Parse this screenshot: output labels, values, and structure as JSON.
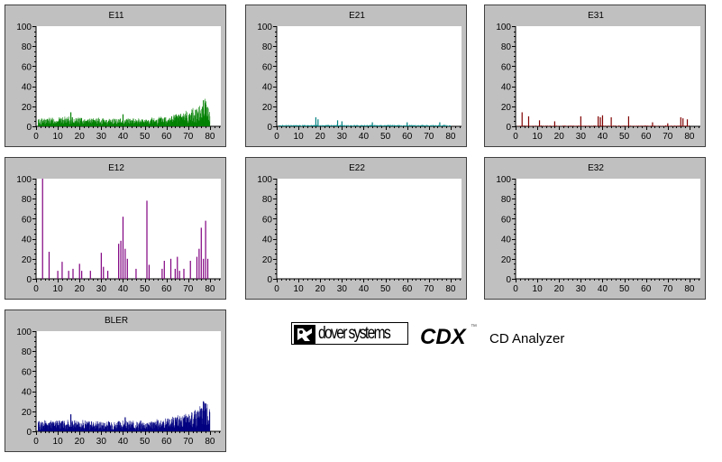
{
  "brand": {
    "company": "dover systems",
    "product": "CDX",
    "tm": "™",
    "description": "CD Analyzer",
    "logo_icon": "dover-logo-icon"
  },
  "chart_data": [
    {
      "id": "e11",
      "type": "bar",
      "title": "E11",
      "color": "#008000",
      "xlim": [
        0,
        85
      ],
      "ylim": [
        0,
        100
      ],
      "xticks": [
        0,
        10,
        20,
        30,
        40,
        50,
        60,
        70,
        80
      ],
      "yticks": [
        0,
        20,
        40,
        60,
        80,
        100
      ],
      "profile": [
        [
          0,
          6
        ],
        [
          10,
          7
        ],
        [
          20,
          7
        ],
        [
          30,
          6
        ],
        [
          40,
          6
        ],
        [
          50,
          6
        ],
        [
          60,
          8
        ],
        [
          70,
          12
        ],
        [
          76,
          18
        ],
        [
          78,
          22
        ],
        [
          80,
          15
        ]
      ],
      "noise": 6,
      "spikes": [
        [
          77,
          26
        ],
        [
          78,
          25
        ],
        [
          16,
          14
        ],
        [
          40,
          12
        ]
      ]
    },
    {
      "id": "e21",
      "type": "bar",
      "title": "E21",
      "color": "#008080",
      "xlim": [
        0,
        85
      ],
      "ylim": [
        0,
        100
      ],
      "xticks": [
        0,
        10,
        20,
        30,
        40,
        50,
        60,
        70,
        80
      ],
      "yticks": [
        0,
        20,
        40,
        60,
        80,
        100
      ],
      "profile": [
        [
          0,
          1
        ],
        [
          40,
          1
        ],
        [
          80,
          1
        ]
      ],
      "noise": 2,
      "spikes": [
        [
          18,
          9
        ],
        [
          19,
          7
        ],
        [
          28,
          6
        ],
        [
          30,
          5
        ],
        [
          44,
          4
        ],
        [
          60,
          4
        ],
        [
          75,
          4
        ]
      ]
    },
    {
      "id": "e31",
      "type": "bar",
      "title": "E31",
      "color": "#800000",
      "xlim": [
        0,
        85
      ],
      "ylim": [
        0,
        100
      ],
      "xticks": [
        0,
        10,
        20,
        30,
        40,
        50,
        60,
        70,
        80
      ],
      "yticks": [
        0,
        20,
        40,
        60,
        80,
        100
      ],
      "profile": [
        [
          0,
          0.5
        ],
        [
          80,
          0.5
        ]
      ],
      "noise": 1.5,
      "spikes": [
        [
          3,
          14
        ],
        [
          6,
          10
        ],
        [
          11,
          6
        ],
        [
          18,
          5
        ],
        [
          30,
          10
        ],
        [
          38,
          10
        ],
        [
          39,
          9
        ],
        [
          40,
          11
        ],
        [
          44,
          9
        ],
        [
          52,
          10
        ],
        [
          76,
          9
        ],
        [
          77,
          8
        ],
        [
          79,
          7
        ],
        [
          63,
          4
        ],
        [
          70,
          3
        ]
      ]
    },
    {
      "id": "e12",
      "type": "bar",
      "title": "E12",
      "color": "#800080",
      "xlim": [
        0,
        85
      ],
      "ylim": [
        0,
        100
      ],
      "xticks": [
        0,
        10,
        20,
        30,
        40,
        50,
        60,
        70,
        80
      ],
      "yticks": [
        0,
        20,
        40,
        60,
        80,
        100
      ],
      "profile": [
        [
          0,
          0
        ],
        [
          80,
          0
        ]
      ],
      "noise": 0,
      "spikes": [
        [
          3,
          100
        ],
        [
          6,
          27
        ],
        [
          10,
          8
        ],
        [
          12,
          17
        ],
        [
          15,
          8
        ],
        [
          17,
          10
        ],
        [
          20,
          15
        ],
        [
          21,
          8
        ],
        [
          25,
          8
        ],
        [
          30,
          26
        ],
        [
          31,
          12
        ],
        [
          33,
          8
        ],
        [
          38,
          35
        ],
        [
          39,
          38
        ],
        [
          40,
          62
        ],
        [
          41,
          30
        ],
        [
          42,
          20
        ],
        [
          46,
          10
        ],
        [
          51,
          78
        ],
        [
          52,
          14
        ],
        [
          58,
          10
        ],
        [
          62,
          20
        ],
        [
          64,
          10
        ],
        [
          65,
          22
        ],
        [
          66,
          8
        ],
        [
          68,
          10
        ],
        [
          71,
          18
        ],
        [
          74,
          22
        ],
        [
          75,
          30
        ],
        [
          76,
          51
        ],
        [
          78,
          58
        ],
        [
          77,
          20
        ],
        [
          79,
          20
        ],
        [
          59,
          18
        ]
      ]
    },
    {
      "id": "e22",
      "type": "bar",
      "title": "E22",
      "color": "#000080",
      "xlim": [
        0,
        85
      ],
      "ylim": [
        0,
        100
      ],
      "xticks": [
        0,
        10,
        20,
        30,
        40,
        50,
        60,
        70,
        80
      ],
      "yticks": [
        0,
        20,
        40,
        60,
        80,
        100
      ],
      "profile": [
        [
          0,
          0
        ],
        [
          80,
          0
        ]
      ],
      "noise": 0,
      "spikes": []
    },
    {
      "id": "e32",
      "type": "bar",
      "title": "E32",
      "color": "#000080",
      "xlim": [
        0,
        85
      ],
      "ylim": [
        0,
        100
      ],
      "xticks": [
        0,
        10,
        20,
        30,
        40,
        50,
        60,
        70,
        80
      ],
      "yticks": [
        0,
        20,
        40,
        60,
        80,
        100
      ],
      "profile": [
        [
          0,
          0
        ],
        [
          80,
          0
        ]
      ],
      "noise": 0,
      "spikes": []
    },
    {
      "id": "bler",
      "type": "bar",
      "title": "BLER",
      "color": "#000080",
      "xlim": [
        0,
        85
      ],
      "ylim": [
        0,
        100
      ],
      "xticks": [
        0,
        10,
        20,
        30,
        40,
        50,
        60,
        70,
        80
      ],
      "yticks": [
        0,
        20,
        40,
        60,
        80,
        100
      ],
      "profile": [
        [
          0,
          8
        ],
        [
          10,
          9
        ],
        [
          20,
          9
        ],
        [
          30,
          8
        ],
        [
          40,
          8
        ],
        [
          50,
          8
        ],
        [
          60,
          10
        ],
        [
          70,
          14
        ],
        [
          76,
          22
        ],
        [
          78,
          25
        ],
        [
          80,
          16
        ]
      ],
      "noise": 7,
      "spikes": [
        [
          77,
          30
        ],
        [
          78,
          28
        ],
        [
          16,
          17
        ],
        [
          41,
          14
        ]
      ]
    }
  ]
}
